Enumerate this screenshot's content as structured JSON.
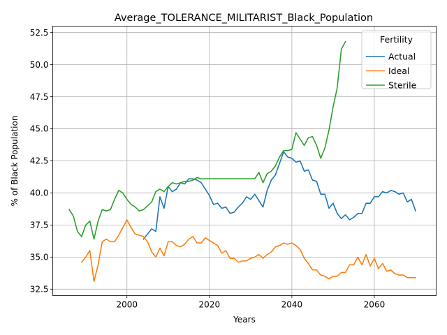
{
  "chart_data": {
    "type": "line",
    "title": "Average_TOLERANCE_MILITARIST_Black_Population",
    "xlabel": "Years",
    "ylabel": "% of Black Population",
    "xlim": [
      1982,
      2075
    ],
    "ylim": [
      32.0,
      53.0
    ],
    "xticks": [
      2000,
      2020,
      2040,
      2060
    ],
    "yticks": [
      32.5,
      35.0,
      37.5,
      40.0,
      42.5,
      45.0,
      47.5,
      50.0,
      52.5
    ],
    "grid": true,
    "legend": {
      "title": "Fertility",
      "placement": "top-right"
    },
    "series": [
      {
        "name": "Actual",
        "color": "#1f77b4",
        "x": [
          2004,
          2005,
          2006,
          2007,
          2008,
          2009,
          2010,
          2011,
          2012,
          2013,
          2014,
          2015,
          2016,
          2017,
          2018,
          2019,
          2020,
          2021,
          2022,
          2023,
          2024,
          2025,
          2026,
          2027,
          2028,
          2029,
          2030,
          2031,
          2032,
          2033,
          2034,
          2035,
          2036,
          2037,
          2038,
          2039,
          2040,
          2041,
          2042,
          2043,
          2044,
          2045,
          2046,
          2047,
          2048,
          2049,
          2050,
          2051,
          2052,
          2053,
          2054,
          2055,
          2056,
          2057,
          2058,
          2059,
          2060,
          2061,
          2062,
          2063,
          2064,
          2065,
          2066,
          2067,
          2068,
          2069,
          2070
        ],
        "y": [
          36.4,
          36.8,
          37.2,
          37.0,
          39.7,
          38.8,
          40.5,
          40.1,
          40.3,
          40.8,
          40.7,
          41.1,
          41.1,
          41.0,
          40.8,
          40.3,
          39.8,
          39.1,
          39.2,
          38.8,
          38.9,
          38.4,
          38.5,
          38.9,
          39.2,
          39.7,
          39.5,
          39.9,
          39.4,
          38.9,
          40.2,
          41.0,
          41.4,
          42.3,
          43.2,
          42.8,
          42.7,
          42.4,
          42.5,
          41.7,
          41.8,
          41.0,
          40.9,
          39.9,
          39.9,
          38.8,
          39.2,
          38.4,
          38.0,
          38.3,
          37.9,
          38.1,
          38.4,
          38.4,
          39.2,
          39.2,
          39.7,
          39.7,
          40.1,
          40.0,
          40.2,
          40.1,
          39.9,
          40.0,
          39.3,
          39.5,
          38.6
        ]
      },
      {
        "name": "Ideal",
        "color": "#ff7f0e",
        "x": [
          1989,
          1990,
          1991,
          1992,
          1993,
          1994,
          1995,
          1996,
          1997,
          1998,
          1999,
          2000,
          2001,
          2002,
          2003,
          2004,
          2005,
          2006,
          2007,
          2008,
          2009,
          2010,
          2011,
          2012,
          2013,
          2014,
          2015,
          2016,
          2017,
          2018,
          2019,
          2020,
          2021,
          2022,
          2023,
          2024,
          2025,
          2026,
          2027,
          2028,
          2029,
          2030,
          2031,
          2032,
          2033,
          2034,
          2035,
          2036,
          2037,
          2038,
          2039,
          2040,
          2041,
          2042,
          2043,
          2044,
          2045,
          2046,
          2047,
          2048,
          2049,
          2050,
          2051,
          2052,
          2053,
          2054,
          2055,
          2056,
          2057,
          2058,
          2059,
          2060,
          2061,
          2062,
          2063,
          2064,
          2065,
          2066,
          2067,
          2068,
          2069,
          2070
        ],
        "y": [
          34.6,
          35.0,
          35.5,
          33.1,
          34.4,
          36.2,
          36.4,
          36.2,
          36.2,
          36.7,
          37.3,
          37.9,
          37.3,
          36.8,
          36.7,
          36.6,
          36.2,
          35.4,
          35.0,
          35.7,
          35.1,
          36.2,
          36.2,
          35.9,
          35.8,
          36.0,
          36.4,
          36.6,
          36.1,
          36.1,
          36.5,
          36.3,
          36.1,
          35.9,
          35.3,
          35.5,
          34.9,
          34.9,
          34.6,
          34.7,
          34.7,
          34.9,
          35.0,
          35.2,
          34.9,
          35.2,
          35.4,
          35.8,
          35.9,
          36.1,
          36.0,
          36.1,
          35.9,
          35.6,
          34.9,
          34.5,
          34.0,
          34.0,
          33.6,
          33.5,
          33.3,
          33.5,
          33.5,
          33.8,
          33.8,
          34.4,
          34.4,
          35.0,
          34.4,
          35.2,
          34.3,
          34.9,
          34.1,
          34.5,
          33.9,
          34.0,
          33.7,
          33.6,
          33.6,
          33.4,
          33.4,
          33.4
        ]
      },
      {
        "name": "Sterile",
        "color": "#2ca02c",
        "x": [
          1986,
          1987,
          1988,
          1989,
          1990,
          1991,
          1992,
          1993,
          1994,
          1995,
          1996,
          1997,
          1998,
          1999,
          2000,
          2001,
          2002,
          2003,
          2004,
          2005,
          2006,
          2007,
          2008,
          2009,
          2010,
          2011,
          2012,
          2013,
          2014,
          2015,
          2016,
          2017,
          2018,
          2019,
          2020,
          2021,
          2022,
          2023,
          2024,
          2025,
          2026,
          2027,
          2028,
          2029,
          2030,
          2031,
          2032,
          2033,
          2034,
          2035,
          2036,
          2037,
          2038,
          2039,
          2040,
          2041,
          2042,
          2043,
          2044,
          2045,
          2046,
          2047,
          2048,
          2049,
          2050,
          2051,
          2052,
          2053
        ],
        "y": [
          38.7,
          38.2,
          37.0,
          36.6,
          37.5,
          37.8,
          36.4,
          37.8,
          38.7,
          38.6,
          38.7,
          39.5,
          40.2,
          40.0,
          39.5,
          39.1,
          38.9,
          38.6,
          38.7,
          39.0,
          39.3,
          40.1,
          40.3,
          40.1,
          40.5,
          40.8,
          40.7,
          40.8,
          40.9,
          40.9,
          41.0,
          41.2,
          41.1,
          41.1,
          41.1,
          41.1,
          41.1,
          41.1,
          41.1,
          41.1,
          41.1,
          41.1,
          41.1,
          41.1,
          41.1,
          41.1,
          41.6,
          40.8,
          41.5,
          41.7,
          42.1,
          42.8,
          43.3,
          43.3,
          43.4,
          44.7,
          44.2,
          43.7,
          44.3,
          44.4,
          43.7,
          42.7,
          43.5,
          44.9,
          46.7,
          48.2,
          51.2,
          51.8
        ]
      }
    ]
  }
}
